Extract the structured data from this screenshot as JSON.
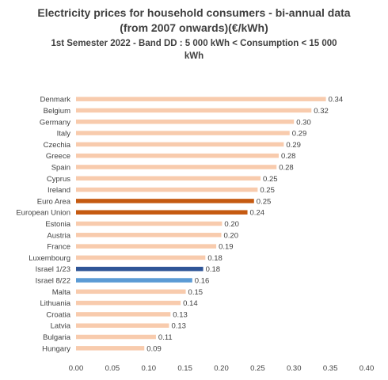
{
  "chart_data": {
    "type": "bar",
    "orientation": "horizontal",
    "title_lines": [
      "Electricity prices for household consumers - bi-annual data",
      "(from 2007 onwards)(€/kWh)"
    ],
    "subtitle_lines": [
      "1st Semester 2022  - Band DD : 5 000 kWh < Consumption < 15 000",
      "kWh"
    ],
    "categories": [
      "Denmark",
      "Belgium",
      "Germany",
      "Italy",
      "Czechia",
      "Greece",
      "Spain",
      "Cyprus",
      "Ireland",
      "Euro Area",
      "European Union",
      "Estonia",
      "Austria",
      "France",
      "Luxembourg",
      "Israel 1/23",
      "Israel 8/22",
      "Malta",
      "Lithuania",
      "Croatia",
      "Latvia",
      "Bulgaria",
      "Hungary"
    ],
    "values": [
      0.344,
      0.324,
      0.3,
      0.294,
      0.286,
      0.279,
      0.276,
      0.254,
      0.25,
      0.245,
      0.236,
      0.201,
      0.2,
      0.193,
      0.178,
      0.175,
      0.16,
      0.151,
      0.144,
      0.13,
      0.128,
      0.11,
      0.094
    ],
    "value_labels": [
      "0.34",
      "0.32",
      "0.30",
      "0.29",
      "0.29",
      "0.28",
      "0.28",
      "0.25",
      "0.25",
      "0.25",
      "0.24",
      "0.20",
      "0.20",
      "0.19",
      "0.18",
      "0.18",
      "0.16",
      "0.15",
      "0.14",
      "0.13",
      "0.13",
      "0.11",
      "0.09"
    ],
    "bar_colors": [
      "#f8cbad",
      "#f8cbad",
      "#f8cbad",
      "#f8cbad",
      "#f8cbad",
      "#f8cbad",
      "#f8cbad",
      "#f8cbad",
      "#f8cbad",
      "#c55a11",
      "#c55a11",
      "#f8cbad",
      "#f8cbad",
      "#f8cbad",
      "#f8cbad",
      "#2f5597",
      "#5b9bd5",
      "#f8cbad",
      "#f8cbad",
      "#f8cbad",
      "#f8cbad",
      "#f8cbad",
      "#f8cbad"
    ],
    "xlim": [
      0,
      0.4
    ],
    "x_ticks": [
      0,
      0.05,
      0.1,
      0.15,
      0.2,
      0.25,
      0.3,
      0.35,
      0.4
    ],
    "x_tick_labels": [
      "0.00",
      "0.05",
      "0.10",
      "0.15",
      "0.20",
      "0.25",
      "0.30",
      "0.35",
      "0.40"
    ],
    "grid": false,
    "legend": "none"
  }
}
